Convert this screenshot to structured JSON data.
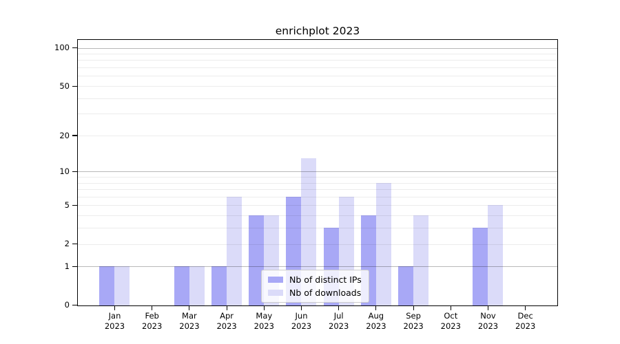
{
  "title": "enrichplot 2023",
  "chart_data": {
    "type": "bar",
    "title": "enrichplot 2023",
    "year_label": "2023",
    "months": [
      "Jan",
      "Feb",
      "Mar",
      "Apr",
      "May",
      "Jun",
      "Jul",
      "Aug",
      "Sep",
      "Oct",
      "Nov",
      "Dec"
    ],
    "categories": [
      "Jan 2023",
      "Feb 2023",
      "Mar 2023",
      "Apr 2023",
      "May 2023",
      "Jun 2023",
      "Jul 2023",
      "Aug 2023",
      "Sep 2023",
      "Oct 2023",
      "Nov 2023",
      "Dec 2023"
    ],
    "series": [
      {
        "name": "Nb of distinct IPs",
        "color": "#a8a8f6",
        "values": [
          1,
          0,
          1,
          1,
          4,
          6,
          3,
          4,
          1,
          0,
          3,
          0
        ]
      },
      {
        "name": "Nb of downloads",
        "color": "#dbdbf9",
        "values": [
          1,
          0,
          1,
          6,
          4,
          13,
          6,
          8,
          4,
          0,
          5,
          0
        ]
      }
    ],
    "yscale": "log10(1+v)",
    "ylim": [
      0,
      116
    ],
    "yticks": [
      0,
      1,
      2,
      5,
      10,
      20,
      50,
      100
    ],
    "grid": true,
    "major_gridlines": [
      1,
      10,
      100
    ],
    "minor_gridlines": [
      2,
      3,
      4,
      5,
      6,
      7,
      8,
      9,
      20,
      30,
      40,
      50,
      60,
      70,
      80,
      90
    ],
    "grid_major_color": "rgba(0,0,0,0.28)",
    "grid_minor_color": "rgba(0,0,0,0.075)",
    "axis_color": "#000000",
    "legend_position": "lower center",
    "xlabel": "",
    "ylabel": ""
  }
}
